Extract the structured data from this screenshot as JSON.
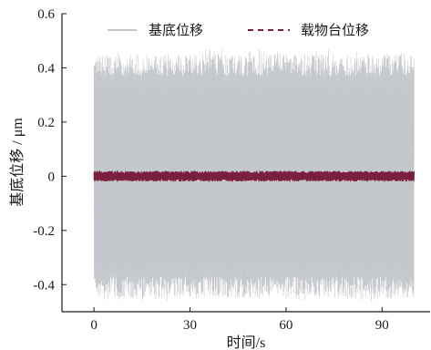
{
  "chart_data": {
    "type": "line",
    "xlabel": "时间/s",
    "ylabel": "基底位移 / μm",
    "xlim": [
      -10,
      105
    ],
    "ylim": [
      -0.5,
      0.6
    ],
    "x_ticks": [
      0,
      30,
      60,
      90
    ],
    "x_tick_labels": [
      "0",
      "30",
      "60",
      "90"
    ],
    "y_ticks": [
      -0.4,
      -0.2,
      0,
      0.2,
      0.4,
      0.6
    ],
    "y_tick_labels": [
      "-0.4",
      "-0.2",
      "0",
      "0.2",
      "0.4",
      "0.6"
    ],
    "grid": false,
    "legend_position": "top",
    "series": [
      {
        "name": "基底位移",
        "style": "solid",
        "color": "#c4c7cb",
        "x_range": [
          0,
          100
        ],
        "amplitude_envelope": [
          -0.46,
          0.47
        ],
        "typical_amplitude": 0.41
      },
      {
        "name": "载物台位移",
        "style": "dashed",
        "color": "#7a1f3d",
        "x_range": [
          0,
          100
        ],
        "amplitude_envelope": [
          -0.02,
          0.02
        ],
        "typical_amplitude": 0.015
      }
    ]
  }
}
